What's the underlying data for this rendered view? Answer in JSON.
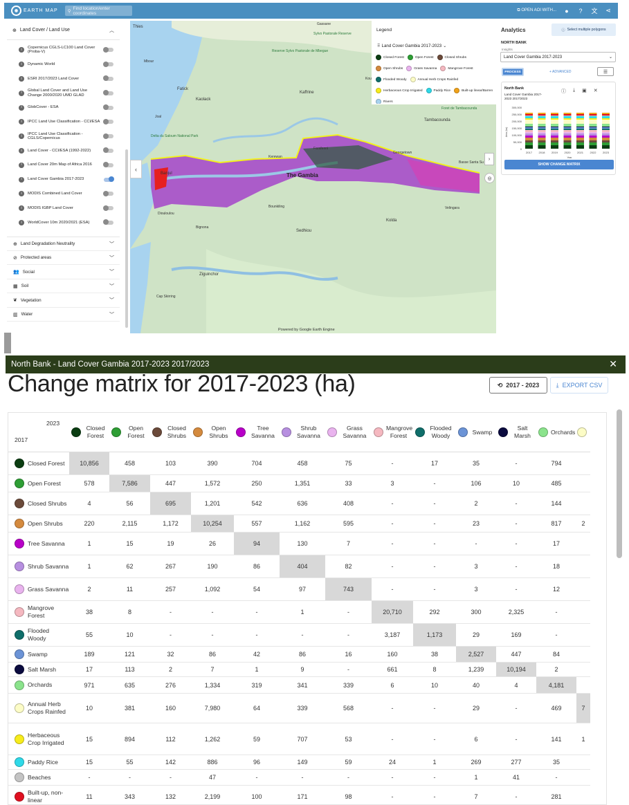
{
  "topbar": {
    "logo": "EARTH MAP",
    "search_placeholder": "Find location/enter coordinates",
    "open_aoi": "OPEN AOI WITH..."
  },
  "sidebar": {
    "header": "Land Cover / Land Use",
    "items": [
      {
        "label": "Copernicus CGLS-LC100 Land Cover (Proba-V)",
        "on": false
      },
      {
        "label": "Dynamic World",
        "on": false
      },
      {
        "label": "ESRI 2017/2023 Land Cover",
        "on": false
      },
      {
        "label": "Global Land Cover and Land Use Change 2000/2020 UMD GLAD",
        "on": false
      },
      {
        "label": "GlobCover - ESA",
        "on": false
      },
      {
        "label": "IPCC Land Use Classification - CCI/ESA",
        "on": false
      },
      {
        "label": "IPCC Land Use Classification - CGLS/Copernicus",
        "on": false
      },
      {
        "label": "Land Cover - CCI/ESA (1992-2022)",
        "on": false
      },
      {
        "label": "Land Cover 20m Map of Africa 2016",
        "on": false
      },
      {
        "label": "Land Cover Gambia 2017-2023",
        "on": true
      },
      {
        "label": "MODIS Combined Land Cover",
        "on": false
      },
      {
        "label": "MODIS IGBP Land Cover",
        "on": false
      },
      {
        "label": "WorldCover 10m 2020/2021 (ESA)",
        "on": false
      }
    ],
    "sections": [
      {
        "label": "Land Degradation Neutrality",
        "icon": "globe-icon"
      },
      {
        "label": "Protected areas",
        "icon": "no-entry-icon"
      },
      {
        "label": "Social",
        "icon": "people-icon"
      },
      {
        "label": "Soil",
        "icon": "soil-icon"
      },
      {
        "label": "Vegetation",
        "icon": "plant-icon"
      },
      {
        "label": "Water",
        "icon": "water-icon"
      }
    ]
  },
  "map": {
    "place_labels": [
      "Thies",
      "Gassane",
      "Reserve Sylvo Pastorale de Mbegue",
      "Sylvo Pastorale Reserve",
      "Kaolack",
      "Kaffrine",
      "Fatick",
      "Delta du Saloum National Park",
      "Banjul",
      "The Gambia",
      "Kerewan",
      "Farafenni",
      "Georgetown",
      "Basse Santa Su",
      "Tambacounda",
      "Kolda",
      "Ziguinchor",
      "Cap Skirring",
      "Velingara",
      "Sedhiou",
      "Bignona",
      "Bounkiling",
      "Diouloulou",
      "Koungheul",
      "Mbour",
      "Joal",
      "Foret de Tambacounda"
    ],
    "powered_by": "Powered by Google Earth Engine"
  },
  "legend": {
    "title": "Legend",
    "subtitle": "Land Cover Gambia 2017-2023",
    "items": [
      {
        "label": "Closed Forest",
        "color": "#0b3d12"
      },
      {
        "label": "Open Forest",
        "color": "#2e9e35"
      },
      {
        "label": "Closed Shrubs",
        "color": "#6b4a3a"
      },
      {
        "label": "Open Shrubs",
        "color": "#d48a3e"
      },
      {
        "label": "Grass Savanna",
        "color": "#e9b3ee"
      },
      {
        "label": "Mangrove Forest",
        "color": "#f5b8c0"
      },
      {
        "label": "Flooded Woody",
        "color": "#0f6e6a"
      },
      {
        "label": "Annual Herb Crops Rainfed",
        "color": "#fcfcc6"
      },
      {
        "label": "Herbaceous Crop Irrigated",
        "color": "#f7ec1c"
      },
      {
        "label": "Paddy Rice",
        "color": "#2fd9e8"
      },
      {
        "label": "Built-up linear/Barren",
        "color": "#f0a21a"
      },
      {
        "label": "Rivers",
        "color": "#a7d3ef"
      }
    ]
  },
  "analytics": {
    "title": "Analytics",
    "multi": "Select multiple polygons",
    "region": "NORTH BANK",
    "insights_label": "Insights",
    "insights_value": "Land Cover Gambia 2017-2023",
    "process": "PROCESS",
    "advanced": "+ ADVANCED",
    "card_title": "North Bank",
    "card_sub": "Land Cover Gambia 2017-2023 2017/2023",
    "show_matrix": "SHOW CHANGE MATRIX",
    "chart": {
      "yticks": [
        "300,000",
        "250,000",
        "200,000",
        "150,000",
        "100,000",
        "50,000",
        "0"
      ],
      "ylabel": "Area (ha)",
      "xlabel": "Year",
      "years": [
        "2017",
        "2018",
        "2019",
        "2020",
        "2021",
        "2022",
        "2023"
      ]
    }
  },
  "modal": {
    "header": "North Bank - Land Cover Gambia 2017-2023 2017/2023",
    "title": "Change matrix for 2017-2023 (ha)",
    "period_btn": "2017 - 2023",
    "export_btn": "EXPORT CSV",
    "corner_col": "2023",
    "corner_row": "2017",
    "columns": [
      {
        "label": "Closed Forest",
        "color": "#0b3d12"
      },
      {
        "label": "Open Forest",
        "color": "#2e9e35"
      },
      {
        "label": "Closed Shrubs",
        "color": "#6b4a3a"
      },
      {
        "label": "Open Shrubs",
        "color": "#d48a3e"
      },
      {
        "label": "Tree Savanna",
        "color": "#b800c8"
      },
      {
        "label": "Shrub Savanna",
        "color": "#b78fe0"
      },
      {
        "label": "Grass Savanna",
        "color": "#e9b3ee"
      },
      {
        "label": "Mangrove Forest",
        "color": "#f5b8c0"
      },
      {
        "label": "Flooded Woody",
        "color": "#0f6e6a"
      },
      {
        "label": "Swamp",
        "color": "#6b93d6"
      },
      {
        "label": "Salt Marsh",
        "color": "#0b0b3f"
      },
      {
        "label": "Orchards",
        "color": "#8be38c"
      },
      {
        "label": "",
        "color": "#fcfcc6"
      }
    ],
    "rows": [
      {
        "label": "Closed Forest",
        "color": "#0b3d12",
        "values": [
          "10,856",
          "458",
          "103",
          "390",
          "704",
          "458",
          "75",
          "-",
          "17",
          "35",
          "-",
          "794",
          ""
        ]
      },
      {
        "label": "Open Forest",
        "color": "#2e9e35",
        "values": [
          "578",
          "7,586",
          "447",
          "1,572",
          "250",
          "1,351",
          "33",
          "3",
          "-",
          "106",
          "10",
          "485",
          ""
        ]
      },
      {
        "label": "Closed Shrubs",
        "color": "#6b4a3a",
        "values": [
          "4",
          "56",
          "695",
          "1,201",
          "542",
          "636",
          "408",
          "-",
          "-",
          "2",
          "-",
          "144",
          ""
        ]
      },
      {
        "label": "Open Shrubs",
        "color": "#d48a3e",
        "values": [
          "220",
          "2,115",
          "1,172",
          "10,254",
          "557",
          "1,162",
          "595",
          "-",
          "-",
          "23",
          "-",
          "817",
          "2"
        ]
      },
      {
        "label": "Tree Savanna",
        "color": "#b800c8",
        "values": [
          "1",
          "15",
          "19",
          "26",
          "94",
          "130",
          "7",
          "-",
          "-",
          "-",
          "-",
          "17",
          ""
        ]
      },
      {
        "label": "Shrub Savanna",
        "color": "#b78fe0",
        "values": [
          "1",
          "62",
          "267",
          "190",
          "86",
          "404",
          "82",
          "-",
          "-",
          "3",
          "-",
          "18",
          ""
        ]
      },
      {
        "label": "Grass Savanna",
        "color": "#e9b3ee",
        "values": [
          "2",
          "11",
          "257",
          "1,092",
          "54",
          "97",
          "743",
          "-",
          "-",
          "3",
          "-",
          "12",
          ""
        ]
      },
      {
        "label": "Mangrove Forest",
        "color": "#f5b8c0",
        "values": [
          "38",
          "8",
          "-",
          "-",
          "-",
          "1",
          "-",
          "20,710",
          "292",
          "300",
          "2,325",
          "-",
          ""
        ]
      },
      {
        "label": "Flooded Woody",
        "color": "#0f6e6a",
        "values": [
          "55",
          "10",
          "-",
          "-",
          "-",
          "-",
          "-",
          "3,187",
          "1,173",
          "29",
          "169",
          "-",
          ""
        ]
      },
      {
        "label": "Swamp",
        "color": "#6b93d6",
        "values": [
          "189",
          "121",
          "32",
          "86",
          "42",
          "86",
          "16",
          "160",
          "38",
          "2,527",
          "447",
          "84",
          ""
        ]
      },
      {
        "label": "Salt Marsh",
        "color": "#0b0b3f",
        "values": [
          "17",
          "113",
          "2",
          "7",
          "1",
          "9",
          "-",
          "661",
          "8",
          "1,239",
          "10,194",
          "2",
          ""
        ]
      },
      {
        "label": "Orchards",
        "color": "#8be38c",
        "values": [
          "971",
          "635",
          "276",
          "1,334",
          "319",
          "341",
          "339",
          "6",
          "10",
          "40",
          "4",
          "4,181",
          ""
        ]
      },
      {
        "label": "Annual Herb Crops Rainfed",
        "color": "#fcfcc6",
        "values": [
          "10",
          "381",
          "160",
          "7,980",
          "64",
          "339",
          "568",
          "-",
          "-",
          "29",
          "-",
          "469",
          "7"
        ]
      },
      {
        "label": "Herbaceous Crop Irrigated",
        "color": "#f7ec1c",
        "values": [
          "15",
          "894",
          "112",
          "1,262",
          "59",
          "707",
          "53",
          "-",
          "-",
          "6",
          "-",
          "141",
          "1"
        ]
      },
      {
        "label": "Paddy Rice",
        "color": "#2fd9e8",
        "values": [
          "15",
          "55",
          "142",
          "886",
          "96",
          "149",
          "59",
          "24",
          "1",
          "269",
          "277",
          "35",
          ""
        ]
      },
      {
        "label": "Beaches",
        "color": "#c4c4c4",
        "values": [
          "-",
          "-",
          "-",
          "47",
          "-",
          "-",
          "-",
          "-",
          "-",
          "1",
          "41",
          "-",
          ""
        ]
      },
      {
        "label": "Built-up, non-linear",
        "color": "#e01020",
        "values": [
          "11",
          "343",
          "132",
          "2,199",
          "100",
          "171",
          "98",
          "-",
          "-",
          "7",
          "-",
          "281",
          ""
        ]
      }
    ]
  }
}
